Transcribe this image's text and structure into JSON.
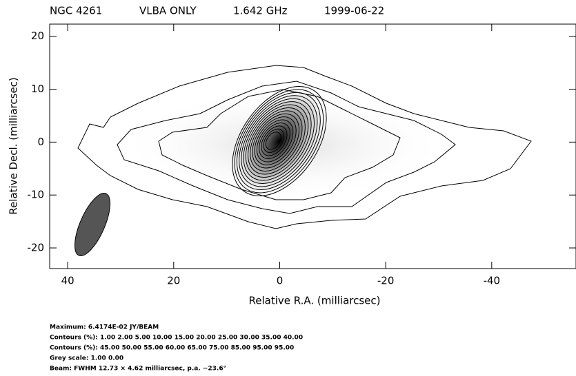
{
  "chart_data": {
    "type": "contour",
    "header": [
      "NGC 4261",
      "VLBA ONLY",
      "1.642 GHz",
      "1999-06-22"
    ],
    "xlabel": "Relative R.A. (milliarcsec)",
    "ylabel": "Relative Decl. (milliarcsec)",
    "xlim": [
      43.4,
      -55.9
    ],
    "xticks": [
      40,
      20,
      0,
      -20,
      -40
    ],
    "ylim": [
      -23.9,
      22.3
    ],
    "yticks": [
      20,
      10,
      0,
      -10,
      -20
    ],
    "notes": [
      "Maximum: 6.4174E-02 JY/BEAM",
      "Contours (%): 1.00 2.00 5.00 10.00 15.00 20.00 25.00 30.00 35.00 40.00",
      "Contours (%): 45.00 50.00 55.00 60.00 65.00 75.00 85.00 95.00 95.00",
      "Grey scale: 1.00 0.00",
      "Beam: FWHM 12.73 × 4.62 milliarcsec, p.a. −23.6°"
    ]
  }
}
